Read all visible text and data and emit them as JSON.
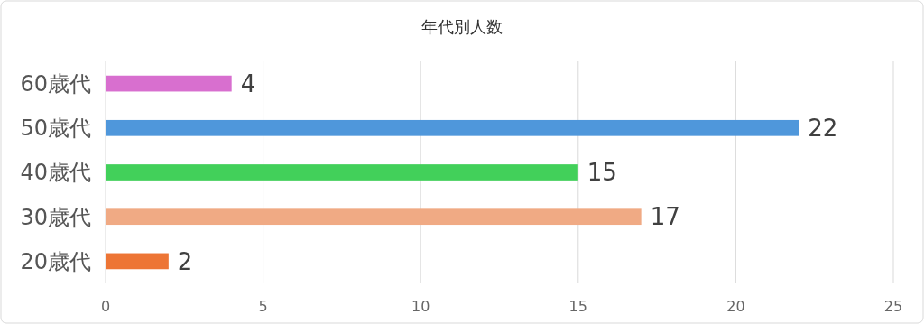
{
  "chart_data": {
    "type": "bar",
    "orientation": "horizontal",
    "title": "年代別人数",
    "categories": [
      "60歳代",
      "50歳代",
      "40歳代",
      "30歳代",
      "20歳代"
    ],
    "values": [
      4,
      22,
      15,
      17,
      2
    ],
    "colors": [
      "#d86fcf",
      "#4f97db",
      "#42d05a",
      "#f0aa84",
      "#ed7535"
    ],
    "xlim": [
      0,
      25
    ],
    "xticks": [
      0,
      5,
      10,
      15,
      20,
      25
    ],
    "grid": "x",
    "data_labels": true
  }
}
